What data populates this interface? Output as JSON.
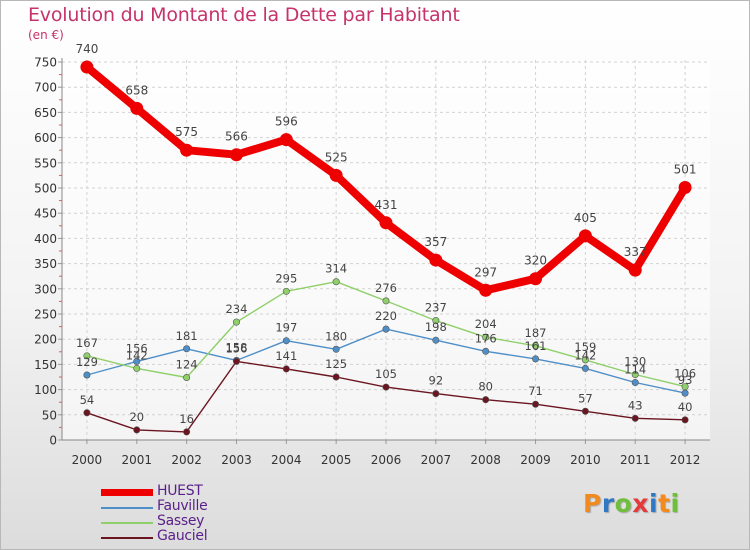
{
  "chart_data": {
    "type": "line",
    "title": "Evolution du Montant de la Dette par Habitant",
    "ylabel": "(en €)",
    "x": [
      "2000",
      "2001",
      "2002",
      "2003",
      "2004",
      "2005",
      "2006",
      "2007",
      "2008",
      "2009",
      "2010",
      "2011",
      "2012"
    ],
    "ylim": [
      0,
      750
    ],
    "yticks": [
      0,
      50,
      100,
      150,
      200,
      250,
      300,
      350,
      400,
      450,
      500,
      550,
      600,
      650,
      700,
      750
    ],
    "grid": true,
    "legend_position": "bottom-left",
    "series": [
      {
        "name": "HUEST",
        "color": "#ee0000",
        "emphasis": true,
        "values": [
          740,
          658,
          575,
          566,
          596,
          525,
          431,
          357,
          297,
          320,
          405,
          337,
          501
        ]
      },
      {
        "name": "Fauville",
        "color": "#4f8fc8",
        "emphasis": false,
        "values": [
          129,
          156,
          181,
          158,
          197,
          180,
          220,
          198,
          176,
          161,
          142,
          114,
          93
        ]
      },
      {
        "name": "Sassey",
        "color": "#8fd06a",
        "emphasis": false,
        "values": [
          167,
          142,
          124,
          234,
          295,
          314,
          276,
          237,
          204,
          187,
          159,
          130,
          106
        ]
      },
      {
        "name": "Gauciel",
        "color": "#6b1520",
        "emphasis": false,
        "values": [
          54,
          20,
          16,
          156,
          141,
          125,
          105,
          92,
          80,
          71,
          57,
          43,
          40
        ]
      }
    ]
  },
  "logo": {
    "text": "Proxiti",
    "colors": [
      "#f28a1e",
      "#2f78c4",
      "#6fbe3c",
      "#e53a3a",
      "#2f78c4",
      "#f28a1e",
      "#6fbe3c"
    ]
  }
}
